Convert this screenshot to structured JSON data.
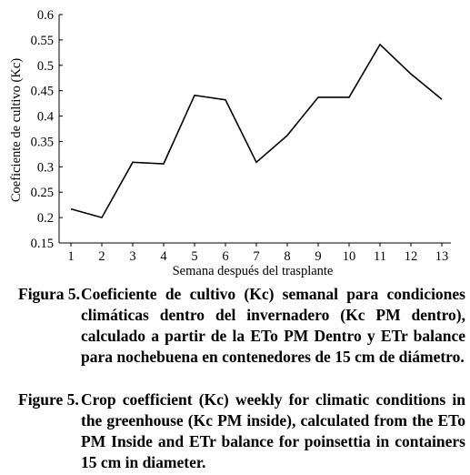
{
  "chart_data": {
    "type": "line",
    "xlabel": "Semana después del trasplante",
    "ylabel": "Coeficiente de cultivo (Kc)",
    "x": [
      1,
      2,
      3,
      4,
      5,
      6,
      7,
      8,
      9,
      10,
      11,
      12,
      13
    ],
    "values": [
      0.217,
      0.2,
      0.309,
      0.306,
      0.441,
      0.432,
      0.309,
      0.362,
      0.437,
      0.437,
      0.541,
      0.483,
      0.433
    ],
    "xticks": [
      "1",
      "2",
      "3",
      "4",
      "5",
      "6",
      "7",
      "8",
      "9",
      "10",
      "11",
      "12",
      "13"
    ],
    "yticks": [
      "0.15",
      "0.2",
      "0.25",
      "0.3",
      "0.35",
      "0.4",
      "0.45",
      "0.5",
      "0.55",
      "0.6"
    ],
    "ylim": [
      0.15,
      0.6
    ],
    "xlim": [
      1,
      13
    ],
    "grid": false,
    "line_color": "#000000"
  },
  "captions": {
    "spanish": {
      "label": "Figura 5.",
      "text": "Coeficiente de cultivo (Kc) semanal para condiciones climáticas dentro del invernadero (Kc PM dentro), calculado a partir de la ETo PM Dentro y ETr balance para nochebuena en contenedores de 15 cm de diámetro."
    },
    "english": {
      "label": "Figure 5.",
      "text": "Crop coefficient (Kc) weekly for climatic conditions in the greenhouse (Kc PM inside), calculated from the ETo PM Inside and ETr balance for poinsettia in containers 15 cm in diameter."
    }
  }
}
